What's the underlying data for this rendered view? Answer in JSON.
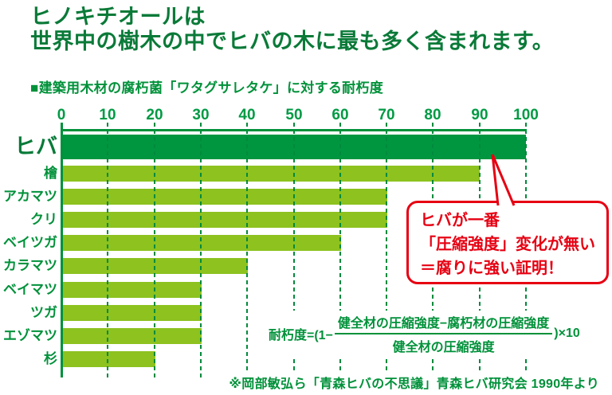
{
  "title": {
    "line1": "ヒノキチオールは",
    "line2": "世界中の樹木の中でヒバの木に最も多く含まれます。"
  },
  "subtitle": "■建築用木材の腐朽菌「ワタグサレタケ」に対する耐朽度",
  "chart_data": {
    "type": "bar",
    "orientation": "horizontal",
    "title": "建築用木材の腐朽菌「ワタグサレタケ」に対する耐朽度",
    "categories": [
      "ヒバ",
      "檜",
      "アカマツ",
      "クリ",
      "ベイツガ",
      "カラマツ",
      "ベイマツ",
      "ツガ",
      "エゾマツ",
      "杉"
    ],
    "values": [
      100,
      90,
      70,
      70,
      60,
      40,
      30,
      30,
      30,
      20
    ],
    "highlight_category": "ヒバ",
    "axis_ticks": [
      0,
      10,
      20,
      30,
      40,
      50,
      60,
      70,
      80,
      90,
      100
    ],
    "xlim": [
      0,
      100
    ],
    "grid": "dashed-vertical",
    "colors": {
      "highlight_bar": "#009640",
      "bar": "#8dc21f",
      "grid": "#008a3c",
      "axis": "#00913a"
    }
  },
  "callout": {
    "lines": [
      "ヒバが一番",
      "「圧縮強度」変化が無い",
      "＝腐りに強い証明！"
    ],
    "color": "#e60012"
  },
  "formula": {
    "prefix": "耐朽度=(1−",
    "numerator": "健全材の圧縮強度−腐朽材の圧縮強度",
    "denominator": "健全材の圧縮強度",
    "suffix": ")×10"
  },
  "source": "※岡部敏弘ら「青森ヒバの不思議」青森ヒバ研究会 1990年より",
  "accent_colors": {
    "title_green": "#0a7a38",
    "text_green": "#00913a",
    "red": "#e60012"
  }
}
